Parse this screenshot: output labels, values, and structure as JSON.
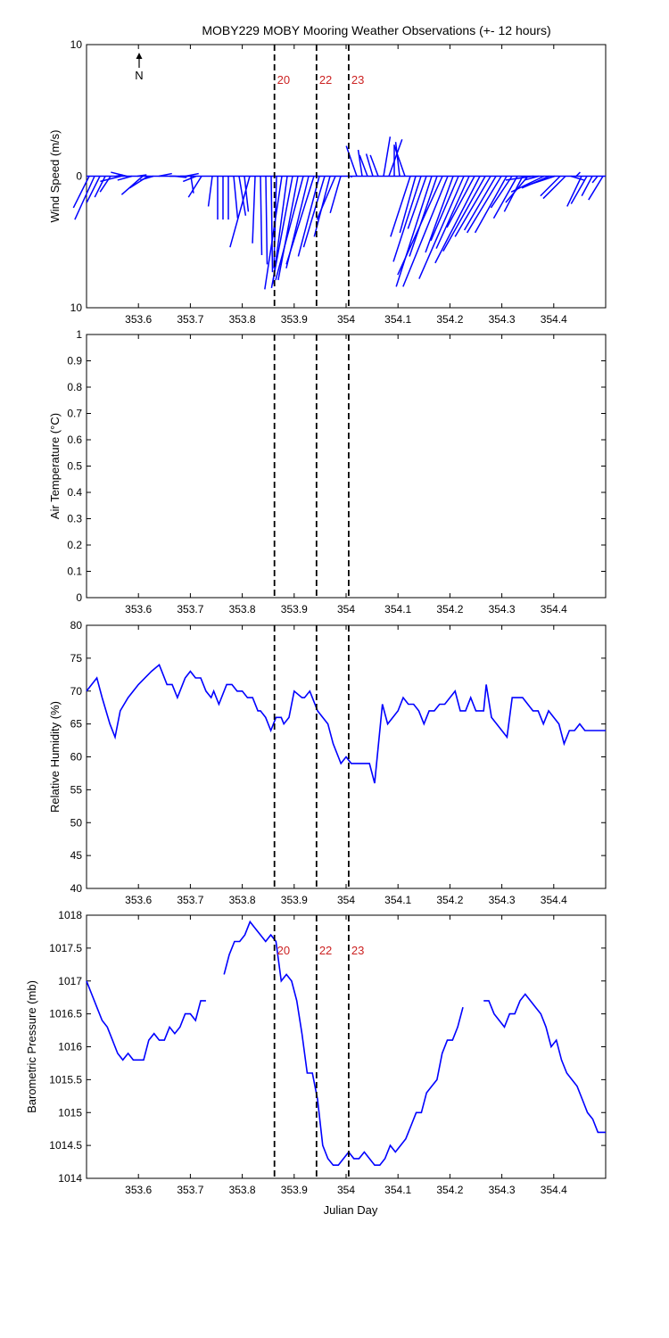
{
  "title": "MOBY229 MOBY Mooring Weather Observations (+- 12 hours)",
  "colors": {
    "series": "#0000ff",
    "marker_label": "#cc2222",
    "axis": "#000000"
  },
  "north_label": "N",
  "xlabel": "Julian Day",
  "markers": [
    {
      "x": 353.862,
      "label": "20"
    },
    {
      "x": 353.943,
      "label": "22"
    },
    {
      "x": 354.005,
      "label": "23"
    }
  ],
  "chart_data": [
    {
      "type": "quiver",
      "name": "wind",
      "ylabel": "Wind Speed (m/s)",
      "xlim": [
        353.5,
        354.5
      ],
      "ylim": [
        -10,
        10
      ],
      "ytick_labels": [
        "10",
        "0",
        "10"
      ],
      "ytick_values": [
        10,
        0,
        -10
      ],
      "x_ticks": [
        353.6,
        353.7,
        353.8,
        353.9,
        354.0,
        354.1,
        354.2,
        354.3,
        354.4
      ],
      "x_tick_labels": [
        "353.6",
        "353.7",
        "353.8",
        "353.9",
        "354",
        "354.1",
        "354.2",
        "354.3",
        "354.4"
      ],
      "show_marker_labels": true,
      "u": [
        -1.2,
        -1.5,
        -1.0,
        -0.8,
        -0.8,
        0.5,
        -1.6,
        -1.2,
        -1.1,
        0.7,
        -1.6,
        -1.4,
        -1.0,
        1.0,
        0.0,
        0.4,
        0.9,
        0.6,
        1.0,
        0.2,
        -1.0,
        -1.0,
        0.0,
        -0.3,
        0.0,
        0.0,
        0.0,
        0.3,
        0.5,
        0.3,
        -1.5,
        -0.2,
        0.1,
        0.1,
        0.1,
        -0.2,
        -1.3,
        -1.1,
        -1.6,
        -1.5,
        -2.1,
        -1.7,
        -2.1,
        -1.6,
        -1.6,
        -1.2,
        -1.4,
        -0.8,
        0.0,
        0.0,
        -0.8,
        -0.3,
        -0.6,
        -0.5,
        -0.6,
        0.5,
        1.0,
        0.0,
        -0.3,
        -0.8,
        -1.5,
        -1.2,
        -2.1,
        -1.4,
        -2.7,
        -2.1,
        -3.4,
        -3.4,
        -2.1,
        -2.1,
        -3.4,
        -2.5,
        -2.1,
        -3.4,
        -3.2,
        -2.7,
        -2.4,
        -2.6,
        -2.4,
        -1.6,
        -1.8,
        -1.4,
        -1.7,
        -2.1,
        -1.1,
        -2.5,
        -2.1,
        -2.1,
        -1.5,
        -1.7,
        1.0,
        0.3,
        -1.1,
        -1.2,
        -0.8,
        -0.4,
        -1.1
      ],
      "v": [
        -2.4,
        -3.3,
        -2.0,
        -1.6,
        -1.2,
        0.1,
        -0.4,
        0.3,
        -0.3,
        0.1,
        -1.4,
        -0.9,
        -0.3,
        0.2,
        0.0,
        0.0,
        -0.1,
        0.0,
        0.2,
        -1.3,
        -0.4,
        -1.6,
        0.0,
        -2.3,
        -3.3,
        -3.3,
        -3.3,
        -3.2,
        -3.0,
        -2.7,
        -5.4,
        -5.1,
        -6.0,
        -6.7,
        -7.3,
        -7.0,
        -8.6,
        -8.2,
        -8.5,
        -7.9,
        -7.9,
        -7.0,
        -6.7,
        -6.1,
        -5.4,
        -4.6,
        -3.3,
        -2.8,
        0.0,
        -0.1,
        2.3,
        2.0,
        1.6,
        1.7,
        1.6,
        3.0,
        2.8,
        2.4,
        2.6,
        2.3,
        -4.6,
        -4.3,
        -6.5,
        -4.0,
        -8.4,
        -6.1,
        -7.5,
        -8.4,
        -5.8,
        -4.9,
        -7.8,
        -5.5,
        -3.9,
        -6.6,
        -5.7,
        -4.6,
        -4.1,
        -4.3,
        -4.3,
        -2.4,
        -3.2,
        -2.7,
        -2.0,
        -0.3,
        -0.3,
        -1.2,
        -0.9,
        -0.7,
        -1.5,
        -1.7,
        -0.3,
        0.3,
        -2.3,
        -2.1,
        -1.5,
        -0.5,
        -1.8
      ]
    },
    {
      "type": "line",
      "name": "air_temperature",
      "ylabel": "Air Temperature (°C)",
      "xlim": [
        353.5,
        354.5
      ],
      "ylim": [
        0,
        1
      ],
      "ytick_values": [
        0,
        0.1,
        0.2,
        0.3,
        0.4,
        0.5,
        0.6,
        0.7,
        0.8,
        0.9,
        1
      ],
      "ytick_labels": [
        "0",
        "0.1",
        "0.2",
        "0.3",
        "0.4",
        "0.5",
        "0.6",
        "0.7",
        "0.8",
        "0.9",
        "1"
      ],
      "x_ticks": [
        353.6,
        353.7,
        353.8,
        353.9,
        354.0,
        354.1,
        354.2,
        354.3,
        354.4
      ],
      "x_tick_labels": [
        "353.6",
        "353.7",
        "353.8",
        "353.9",
        "354",
        "354.1",
        "354.2",
        "354.3",
        "354.4"
      ],
      "show_marker_labels": false,
      "series": []
    },
    {
      "type": "line",
      "name": "relative_humidity",
      "ylabel": "Relative Humidity (%)",
      "xlim": [
        353.5,
        354.5
      ],
      "ylim": [
        40,
        80
      ],
      "ytick_values": [
        40,
        45,
        50,
        55,
        60,
        65,
        70,
        75,
        80
      ],
      "ytick_labels": [
        "40",
        "45",
        "50",
        "55",
        "60",
        "65",
        "70",
        "75",
        "80"
      ],
      "x_ticks": [
        353.6,
        353.7,
        353.8,
        353.9,
        354.0,
        354.1,
        354.2,
        354.3,
        354.4
      ],
      "x_tick_labels": [
        "353.6",
        "353.7",
        "353.8",
        "353.9",
        "354",
        "354.1",
        "354.2",
        "354.3",
        "354.4"
      ],
      "show_marker_labels": false,
      "series": [
        {
          "x": [
            353.5,
            353.51,
            353.52,
            353.53,
            353.545,
            353.555,
            353.565,
            353.58,
            353.6,
            353.625,
            353.64,
            353.645,
            353.655,
            353.665,
            353.675,
            353.69,
            353.7,
            353.71,
            353.72,
            353.73,
            353.74,
            353.745,
            353.755,
            353.77,
            353.78,
            353.79,
            353.8,
            353.81,
            353.82,
            353.83,
            353.835,
            353.845,
            353.855,
            353.865,
            353.875,
            353.88,
            353.89,
            353.9,
            353.915,
            353.92,
            353.93,
            353.94,
            353.945,
            353.955,
            353.965,
            353.975,
            353.985,
            353.99,
            354.0,
            354.01,
            354.02,
            354.03,
            354.045,
            354.055,
            354.07,
            354.08,
            354.09,
            354.1,
            354.11,
            354.12,
            354.13,
            354.14,
            354.15,
            354.16,
            354.17,
            354.18,
            354.19,
            354.2,
            354.21,
            354.22,
            354.23,
            354.24,
            354.25,
            354.26,
            354.265,
            354.27,
            354.28,
            354.29,
            354.3,
            354.31,
            354.32,
            354.33,
            354.34,
            354.35,
            354.36,
            354.37,
            354.38,
            354.39,
            354.4,
            354.41,
            354.42,
            354.43,
            354.44,
            354.45,
            354.46,
            354.47,
            354.48,
            354.49,
            354.5
          ],
          "y": [
            70,
            71,
            72,
            69,
            65,
            63,
            67,
            69,
            71,
            73,
            74,
            73,
            71,
            71,
            69,
            72,
            73,
            72,
            72,
            70,
            69,
            70,
            68,
            71,
            71,
            70,
            70,
            69,
            69,
            67,
            67,
            66,
            64,
            66,
            66,
            65,
            66,
            70,
            69,
            69,
            70,
            68,
            67,
            66,
            65,
            62,
            60,
            59,
            60,
            59,
            59,
            59,
            59,
            56,
            68,
            65,
            66,
            67,
            69,
            68,
            68,
            67,
            65,
            67,
            67,
            68,
            68,
            69,
            70,
            67,
            67,
            69,
            67,
            67,
            67,
            71,
            66,
            65,
            64,
            63,
            69,
            69,
            69,
            68,
            67,
            67,
            65,
            67,
            66,
            65,
            62,
            64,
            64,
            65,
            64,
            64,
            64,
            64,
            64
          ]
        }
      ]
    },
    {
      "type": "line",
      "name": "barometric_pressure",
      "ylabel": "Barometric Pressure (mb)",
      "xlim": [
        353.5,
        354.5
      ],
      "ylim": [
        1014,
        1018
      ],
      "ytick_values": [
        1014,
        1014.5,
        1015,
        1015.5,
        1016,
        1016.5,
        1017,
        1017.5,
        1018
      ],
      "ytick_labels": [
        "1014",
        "1014.5",
        "1015",
        "1015.5",
        "1016",
        "1016.5",
        "1017",
        "1017.5",
        "1018"
      ],
      "x_ticks": [
        353.6,
        353.7,
        353.8,
        353.9,
        354.0,
        354.1,
        354.2,
        354.3,
        354.4
      ],
      "x_tick_labels": [
        "353.6",
        "353.7",
        "353.8",
        "353.9",
        "354",
        "354.1",
        "354.2",
        "354.3",
        "354.4"
      ],
      "show_marker_labels": true,
      "series": [
        {
          "x": [
            353.5,
            353.51,
            353.52,
            353.53,
            353.54,
            353.55,
            353.56,
            353.57,
            353.58,
            353.59,
            353.6,
            353.61,
            353.62,
            353.63,
            353.64,
            353.65,
            353.66,
            353.67,
            353.68,
            353.69,
            353.7,
            353.71,
            353.72,
            353.73,
            353.74,
            353.75
          ],
          "y": [
            1017,
            1016.8,
            1016.6,
            1016.4,
            1016.3,
            1016.1,
            1015.9,
            1015.8,
            1015.9,
            1015.8,
            1015.8,
            1015.8,
            1016.1,
            1016.2,
            1016.1,
            1016.1,
            1016.3,
            1016.2,
            1016.3,
            1016.5,
            1016.5,
            1016.4,
            1016.7,
            1016.7,
            null,
            null
          ]
        },
        {
          "x": [
            353.765,
            353.775,
            353.785,
            353.795,
            353.805,
            353.815,
            353.825,
            353.835,
            353.845,
            353.855,
            353.865,
            353.875,
            353.885,
            353.895,
            353.905,
            353.915,
            353.925,
            353.935,
            353.945,
            353.955,
            353.965,
            353.975,
            353.985,
            353.995,
            354.005,
            354.015,
            354.025,
            354.035,
            354.045,
            354.055,
            354.065,
            354.075,
            354.085,
            354.095,
            354.105,
            354.115,
            354.125,
            354.135,
            354.145,
            354.155,
            354.165,
            354.175,
            354.185,
            354.195,
            354.205,
            354.215,
            354.225,
            354.235,
            354.245
          ],
          "y": [
            1017.1,
            1017.4,
            1017.6,
            1017.6,
            1017.7,
            1017.9,
            1017.8,
            1017.7,
            1017.6,
            1017.7,
            1017.6,
            1017,
            1017.1,
            1017,
            1016.7,
            1016.2,
            1015.6,
            1015.6,
            1015.2,
            1014.5,
            1014.3,
            1014.2,
            1014.2,
            1014.3,
            1014.4,
            1014.3,
            1014.3,
            1014.4,
            1014.3,
            1014.2,
            1014.2,
            1014.3,
            1014.5,
            1014.4,
            1014.5,
            1014.6,
            1014.8,
            1015,
            1015,
            1015.3,
            1015.4,
            1015.5,
            1015.9,
            1016.1,
            1016.1,
            1016.3,
            1016.6,
            null,
            null
          ]
        },
        {
          "x": [
            354.265,
            354.275,
            354.285,
            354.295,
            354.305,
            354.315,
            354.325,
            354.335,
            354.345,
            354.355,
            354.365,
            354.375,
            354.385,
            354.395,
            354.405,
            354.415,
            354.425,
            354.435,
            354.445,
            354.455,
            354.465,
            354.475,
            354.485,
            354.495,
            354.5
          ],
          "y": [
            1016.7,
            1016.7,
            1016.5,
            1016.4,
            1016.3,
            1016.5,
            1016.5,
            1016.7,
            1016.8,
            1016.7,
            1016.6,
            1016.5,
            1016.3,
            1016,
            1016.1,
            1015.8,
            1015.6,
            1015.5,
            1015.4,
            1015.2,
            1015,
            1014.9,
            1014.7,
            1014.7,
            1014.7
          ]
        }
      ]
    }
  ]
}
